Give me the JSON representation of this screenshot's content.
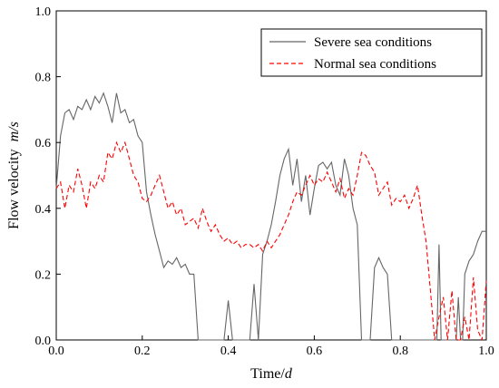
{
  "chart_data": {
    "type": "line",
    "xlabel": "Time/",
    "xlabel_unit": "d",
    "ylabel": "Flow velocity  ",
    "ylabel_unit": "m/s",
    "xlim": [
      0.0,
      1.0
    ],
    "ylim": [
      0.0,
      1.0
    ],
    "xticks": [
      0.0,
      0.2,
      0.4,
      0.6,
      0.8,
      1.0
    ],
    "yticks": [
      0.0,
      0.2,
      0.4,
      0.6,
      0.8,
      1.0
    ],
    "xtick_labels": [
      "0.0",
      "0.2",
      "0.4",
      "0.6",
      "0.8",
      "1.0"
    ],
    "ytick_labels": [
      "0.0",
      "0.2",
      "0.4",
      "0.6",
      "0.8",
      "1.0"
    ],
    "legend_position": "top-right",
    "grid": false,
    "series": [
      {
        "name": "Severe sea conditions",
        "color": "#666666",
        "style": "solid",
        "x": [
          0.0,
          0.01,
          0.02,
          0.03,
          0.04,
          0.05,
          0.06,
          0.07,
          0.08,
          0.09,
          0.1,
          0.11,
          0.12,
          0.13,
          0.14,
          0.15,
          0.16,
          0.17,
          0.18,
          0.19,
          0.2,
          0.21,
          0.22,
          0.23,
          0.24,
          0.25,
          0.26,
          0.27,
          0.28,
          0.29,
          0.3,
          0.31,
          0.32,
          0.33,
          0.34,
          0.35,
          0.36,
          0.37,
          0.38,
          0.39,
          0.4,
          0.41,
          0.42,
          0.43,
          0.44,
          0.45,
          0.46,
          0.47,
          0.48,
          0.49,
          0.5,
          0.51,
          0.52,
          0.53,
          0.54,
          0.55,
          0.56,
          0.57,
          0.58,
          0.59,
          0.6,
          0.61,
          0.62,
          0.63,
          0.64,
          0.65,
          0.66,
          0.67,
          0.68,
          0.69,
          0.7,
          0.71,
          0.72,
          0.73,
          0.74,
          0.75,
          0.76,
          0.77,
          0.78,
          0.79,
          0.8,
          0.81,
          0.82,
          0.83,
          0.84,
          0.85,
          0.86,
          0.87,
          0.88,
          0.885,
          0.89,
          0.895,
          0.9,
          0.91,
          0.92,
          0.93,
          0.935,
          0.94,
          0.945,
          0.95,
          0.96,
          0.97,
          0.98,
          0.99,
          1.0
        ],
        "y": [
          0.46,
          0.62,
          0.69,
          0.7,
          0.67,
          0.71,
          0.7,
          0.73,
          0.7,
          0.74,
          0.72,
          0.75,
          0.71,
          0.66,
          0.75,
          0.69,
          0.7,
          0.66,
          0.67,
          0.62,
          0.6,
          0.45,
          0.38,
          0.32,
          0.27,
          0.22,
          0.24,
          0.23,
          0.25,
          0.22,
          0.23,
          0.2,
          0.2,
          0.0,
          0.0,
          0.0,
          0.0,
          0.0,
          0.0,
          0.0,
          0.12,
          0.0,
          0.0,
          0.0,
          0.0,
          0.0,
          0.17,
          0.0,
          0.26,
          0.3,
          0.35,
          0.42,
          0.5,
          0.55,
          0.58,
          0.47,
          0.55,
          0.42,
          0.5,
          0.38,
          0.46,
          0.53,
          0.54,
          0.52,
          0.54,
          0.47,
          0.44,
          0.55,
          0.5,
          0.4,
          0.35,
          0.0,
          0.0,
          0.0,
          0.22,
          0.25,
          0.22,
          0.2,
          0.0,
          0.0,
          0.0,
          0.0,
          0.0,
          0.0,
          0.0,
          0.0,
          0.0,
          0.0,
          0.0,
          0.0,
          0.29,
          0.0,
          0.0,
          0.0,
          0.0,
          0.0,
          0.13,
          0.0,
          0.0,
          0.2,
          0.24,
          0.26,
          0.3,
          0.33,
          0.33
        ]
      },
      {
        "name": "Normal sea conditions",
        "color": "#ff0000",
        "style": "dashed",
        "x": [
          0.0,
          0.01,
          0.02,
          0.03,
          0.04,
          0.05,
          0.06,
          0.07,
          0.08,
          0.09,
          0.1,
          0.11,
          0.12,
          0.13,
          0.14,
          0.15,
          0.16,
          0.17,
          0.18,
          0.19,
          0.2,
          0.21,
          0.22,
          0.23,
          0.24,
          0.25,
          0.26,
          0.27,
          0.28,
          0.29,
          0.3,
          0.31,
          0.32,
          0.33,
          0.34,
          0.35,
          0.36,
          0.37,
          0.38,
          0.39,
          0.4,
          0.41,
          0.42,
          0.43,
          0.44,
          0.45,
          0.46,
          0.47,
          0.48,
          0.49,
          0.5,
          0.51,
          0.52,
          0.53,
          0.54,
          0.55,
          0.56,
          0.57,
          0.58,
          0.59,
          0.6,
          0.61,
          0.62,
          0.63,
          0.64,
          0.65,
          0.66,
          0.67,
          0.68,
          0.69,
          0.7,
          0.71,
          0.72,
          0.73,
          0.74,
          0.75,
          0.76,
          0.77,
          0.78,
          0.79,
          0.8,
          0.81,
          0.82,
          0.83,
          0.84,
          0.85,
          0.86,
          0.87,
          0.88,
          0.89,
          0.9,
          0.91,
          0.92,
          0.93,
          0.94,
          0.95,
          0.96,
          0.97,
          0.98,
          0.99,
          1.0
        ],
        "y": [
          0.46,
          0.48,
          0.4,
          0.47,
          0.45,
          0.52,
          0.47,
          0.4,
          0.48,
          0.46,
          0.5,
          0.48,
          0.57,
          0.55,
          0.6,
          0.57,
          0.6,
          0.55,
          0.5,
          0.48,
          0.43,
          0.42,
          0.44,
          0.47,
          0.5,
          0.45,
          0.4,
          0.42,
          0.38,
          0.4,
          0.35,
          0.36,
          0.37,
          0.34,
          0.4,
          0.36,
          0.33,
          0.35,
          0.32,
          0.3,
          0.31,
          0.29,
          0.3,
          0.28,
          0.29,
          0.29,
          0.28,
          0.29,
          0.27,
          0.3,
          0.28,
          0.3,
          0.32,
          0.35,
          0.38,
          0.42,
          0.45,
          0.44,
          0.47,
          0.5,
          0.47,
          0.49,
          0.48,
          0.51,
          0.48,
          0.45,
          0.49,
          0.43,
          0.46,
          0.44,
          0.5,
          0.57,
          0.56,
          0.53,
          0.51,
          0.44,
          0.46,
          0.48,
          0.41,
          0.43,
          0.42,
          0.44,
          0.4,
          0.43,
          0.47,
          0.38,
          0.3,
          0.15,
          0.0,
          0.07,
          0.13,
          0.0,
          0.15,
          0.0,
          0.0,
          0.07,
          0.0,
          0.19,
          0.03,
          0.0,
          0.18
        ]
      }
    ]
  }
}
